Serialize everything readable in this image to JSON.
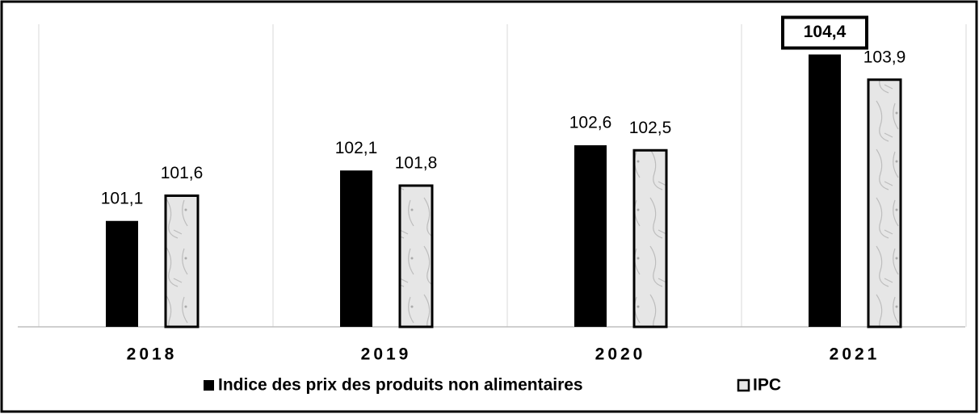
{
  "chart_data": {
    "type": "bar",
    "categories": [
      "2018",
      "2019",
      "2020",
      "2021"
    ],
    "series": [
      {
        "name": "Indice des prix des produits non alimentaires",
        "color": "#000000",
        "values": [
          101.1,
          102.1,
          102.6,
          104.4
        ],
        "value_labels": [
          "101,1",
          "102,1",
          "102,6",
          "104,4"
        ]
      },
      {
        "name": "IPC",
        "color": "#e6e6e6",
        "values": [
          101.6,
          101.8,
          102.5,
          103.9
        ],
        "value_labels": [
          "101,6",
          "101,8",
          "102,5",
          "103,9"
        ]
      }
    ],
    "ylim": [
      99,
      105
    ],
    "grid": true,
    "legend": "bottom",
    "highlight": {
      "series": 0,
      "index": 3
    }
  }
}
